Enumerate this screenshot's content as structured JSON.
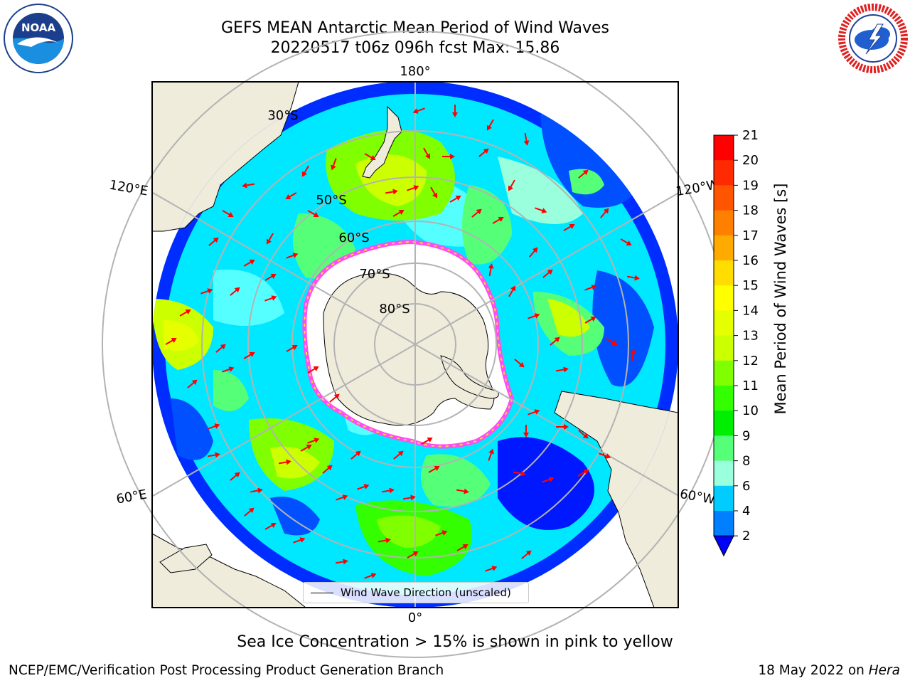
{
  "title": {
    "line1": "GEFS MEAN Antarctic Mean Period of Wind Waves",
    "line2": "20220517 t06z 096h fcst   Max: 15.86"
  },
  "logos": {
    "left": {
      "icon": "noaa-logo",
      "text": "NOAA"
    },
    "right": {
      "icon": "nws-logo"
    }
  },
  "map": {
    "projection": "south-polar-stereographic",
    "longitude_labels": {
      "top": "180°",
      "upper_left": "120°E",
      "upper_right": "120°W",
      "lower_left": "60°E",
      "lower_right": "60°W",
      "bottom": "0°"
    },
    "latitude_labels": [
      "30°S",
      "50°S",
      "60°S",
      "70°S",
      "80°S"
    ],
    "colors": {
      "land": "#efecdc",
      "ocean_deep_blue": "#0018ff",
      "arrow": "#ff0000",
      "sea_ice_pink": "#ff4df0",
      "sea_ice_yellow": "#ffd24d",
      "grid": "#b3b3b3"
    },
    "legend": {
      "label": "Wind Wave Direction (unscaled)"
    }
  },
  "colorbar": {
    "title": "Mean Period of Wind Waves [s]",
    "ticks": [
      "21",
      "20",
      "19",
      "18",
      "17",
      "16",
      "15",
      "14",
      "13",
      "12",
      "11",
      "10",
      "9",
      "8",
      "6",
      "4",
      "2"
    ],
    "colors": [
      "#ff0000",
      "#ff2a00",
      "#ff5500",
      "#ff8000",
      "#ffaa00",
      "#ffdd00",
      "#ffff00",
      "#e6ff00",
      "#ccff00",
      "#80ff00",
      "#33ff00",
      "#00ee00",
      "#55ff77",
      "#99ffdd",
      "#55ffff",
      "#00ffff",
      "#00ccff",
      "#007fff",
      "#0000ff"
    ],
    "extend": "min"
  },
  "notes": {
    "ice": "Sea Ice Concentration > 15% is shown in pink to yellow"
  },
  "footer": {
    "left": "NCEP/EMC/Verification Post Processing Product Generation Branch",
    "right_date": "18 May 2022 on ",
    "right_machine": "Hera"
  }
}
